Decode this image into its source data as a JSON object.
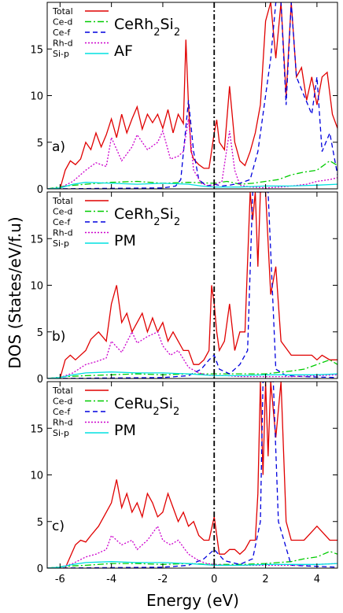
{
  "xlabel": "Energy (eV)",
  "ylabel": "DOS (States/eV/f.u)",
  "chart_data": [
    {
      "type": "line",
      "panel_label": "a)",
      "compound": {
        "base": "CeRh",
        "sub": "2",
        "tail": "Si",
        "sub2": "2"
      },
      "magnetic_state": "AF",
      "xlim": [
        -6.5,
        4.8
      ],
      "ylim": [
        0,
        20
      ],
      "xticks": [
        -6,
        -4,
        -2,
        0,
        2,
        4
      ],
      "yticks": [
        0,
        5,
        10,
        15
      ],
      "fermi_level": 0,
      "legend": [
        "Total",
        "Ce-d",
        "Ce-f",
        "Rh-d",
        "Si-p"
      ],
      "series": [
        {
          "name": "Total",
          "color": "#e00000",
          "dash": "",
          "x": [
            -6.5,
            -6.0,
            -5.8,
            -5.6,
            -5.4,
            -5.2,
            -5.0,
            -4.8,
            -4.6,
            -4.4,
            -4.2,
            -4.0,
            -3.8,
            -3.6,
            -3.4,
            -3.2,
            -3.0,
            -2.8,
            -2.6,
            -2.4,
            -2.2,
            -2.0,
            -1.8,
            -1.6,
            -1.4,
            -1.2,
            -1.1,
            -1.0,
            -0.9,
            -0.8,
            -0.6,
            -0.4,
            -0.2,
            0.0,
            0.1,
            0.2,
            0.4,
            0.6,
            0.8,
            1.0,
            1.2,
            1.4,
            1.6,
            1.8,
            2.0,
            2.2,
            2.4,
            2.6,
            2.8,
            3.0,
            3.2,
            3.4,
            3.6,
            3.8,
            4.0,
            4.2,
            4.4,
            4.6,
            4.8
          ],
          "y": [
            0,
            0,
            2,
            3,
            2.6,
            3.2,
            5,
            4.2,
            6,
            4.5,
            5.8,
            7.5,
            5.5,
            8,
            6,
            7.5,
            8.8,
            6.4,
            8,
            7.1,
            8,
            6.5,
            8.5,
            6,
            8,
            7,
            16,
            9,
            4,
            3.2,
            2.6,
            2.2,
            2.2,
            6,
            7.4,
            5,
            4.2,
            11,
            5,
            3,
            2.5,
            4,
            6,
            9,
            18,
            20,
            14,
            20,
            10,
            20,
            12,
            13,
            9.5,
            12,
            9,
            12,
            12.5,
            8,
            6.5
          ]
        },
        {
          "name": "Ce-d",
          "color": "#00cc00",
          "dash": "8 3 2 3",
          "x": [
            -6.5,
            -5.8,
            -5.0,
            -4.0,
            -3.0,
            -2.0,
            -1.0,
            0.0,
            0.5,
            1.0,
            1.5,
            2.0,
            2.5,
            3.0,
            3.5,
            4.0,
            4.5,
            4.8
          ],
          "y": [
            0,
            0.3,
            0.5,
            0.7,
            0.8,
            0.6,
            0.7,
            0.6,
            0.8,
            0.5,
            0.6,
            0.8,
            1.0,
            1.5,
            1.8,
            2.0,
            3.0,
            2.5
          ]
        },
        {
          "name": "Ce-f",
          "color": "#0000dd",
          "dash": "6 4",
          "x": [
            -6.5,
            -2.0,
            -1.5,
            -1.3,
            -1.0,
            -0.8,
            -0.6,
            -0.3,
            0.0,
            0.3,
            0.6,
            1.0,
            1.4,
            1.7,
            2.0,
            2.2,
            2.4,
            2.6,
            2.8,
            3.0,
            3.2,
            3.5,
            3.8,
            4.0,
            4.2,
            4.5,
            4.8
          ],
          "y": [
            0,
            0.1,
            0.3,
            1,
            9.5,
            4,
            1,
            0.3,
            0.5,
            0.3,
            0.4,
            0.6,
            1.0,
            4,
            10,
            14,
            20,
            20,
            9,
            20,
            12,
            10,
            8,
            12,
            4,
            6,
            1.5
          ]
        },
        {
          "name": "Rh-d",
          "color": "#cc00cc",
          "dash": "2 2",
          "x": [
            -6.5,
            -6.0,
            -5.5,
            -5.0,
            -4.6,
            -4.2,
            -4.0,
            -3.6,
            -3.2,
            -3.0,
            -2.6,
            -2.2,
            -2.0,
            -1.7,
            -1.4,
            -1.2,
            -1.0,
            -0.8,
            -0.5,
            -0.2,
            0.0,
            0.3,
            0.6,
            0.8,
            1.0,
            1.4,
            2.0,
            2.6,
            3.0,
            3.6,
            4.0,
            4.5,
            4.8
          ],
          "y": [
            0,
            0.1,
            0.8,
            2,
            2.8,
            2.4,
            5.5,
            3.0,
            4.5,
            5.8,
            4.2,
            5.0,
            6.2,
            3.2,
            3.5,
            4.0,
            7.5,
            2.0,
            0.6,
            0.3,
            0.4,
            0.8,
            6.2,
            2.0,
            0.4,
            0.2,
            0.1,
            0.2,
            0.3,
            0.5,
            0.8,
            1.0,
            1.2
          ]
        },
        {
          "name": "Si-p",
          "color": "#00e0e0",
          "dash": "",
          "x": [
            -6.5,
            -6.0,
            -5.5,
            -5.0,
            -4.0,
            -3.0,
            -2.0,
            -1.0,
            -0.5,
            0.0,
            1.0,
            2.0,
            3.0,
            4.0,
            4.8
          ],
          "y": [
            0,
            0.1,
            0.5,
            0.7,
            0.6,
            0.5,
            0.6,
            0.5,
            0.3,
            0.2,
            0.2,
            0.3,
            0.3,
            0.4,
            0.5
          ]
        }
      ]
    },
    {
      "type": "line",
      "panel_label": "b)",
      "compound": {
        "base": "CeRh",
        "sub": "2",
        "tail": "Si",
        "sub2": "2"
      },
      "magnetic_state": "PM",
      "xlim": [
        -6.5,
        4.8
      ],
      "ylim": [
        0,
        20
      ],
      "xticks": [
        -6,
        -4,
        -2,
        0,
        2,
        4
      ],
      "yticks": [
        0,
        5,
        10,
        15
      ],
      "fermi_level": 0,
      "legend": [
        "Total",
        "Ce-d",
        "Ce-f",
        "Rh-d",
        "Si-p"
      ],
      "series": [
        {
          "name": "Total",
          "color": "#e00000",
          "dash": "",
          "x": [
            -6.5,
            -6.0,
            -5.8,
            -5.6,
            -5.4,
            -5.0,
            -4.8,
            -4.5,
            -4.2,
            -4.0,
            -3.8,
            -3.6,
            -3.4,
            -3.2,
            -3.0,
            -2.8,
            -2.6,
            -2.4,
            -2.2,
            -2.0,
            -1.8,
            -1.6,
            -1.4,
            -1.2,
            -1.0,
            -0.8,
            -0.6,
            -0.4,
            -0.2,
            -0.1,
            0.0,
            0.1,
            0.2,
            0.4,
            0.6,
            0.8,
            1.0,
            1.2,
            1.4,
            1.5,
            1.6,
            1.7,
            1.8,
            1.9,
            2.0,
            2.2,
            2.4,
            2.6,
            3.0,
            3.4,
            3.8,
            4.0,
            4.2,
            4.5,
            4.8
          ],
          "y": [
            0,
            0,
            2,
            2.5,
            2.0,
            3.0,
            4.2,
            5.0,
            4.0,
            8.0,
            10.0,
            6.0,
            7.0,
            5.0,
            6.0,
            7.0,
            5.0,
            6.5,
            5.0,
            6.0,
            4.0,
            5.0,
            4.0,
            3.0,
            3.0,
            1.5,
            1.5,
            2.0,
            3.0,
            10.0,
            8.0,
            5.0,
            3.0,
            4.0,
            8.0,
            3.0,
            5.0,
            5.0,
            20.0,
            17.0,
            20.0,
            12.0,
            20.0,
            20.0,
            20.0,
            9.0,
            12.0,
            4.0,
            2.5,
            2.5,
            2.5,
            2.0,
            2.5,
            2.0,
            2.0
          ]
        },
        {
          "name": "Ce-d",
          "color": "#00cc00",
          "dash": "8 3 2 3",
          "x": [
            -6.5,
            -5.8,
            -5.0,
            -4.0,
            -3.0,
            -2.0,
            -1.0,
            0.0,
            1.0,
            2.0,
            3.0,
            3.5,
            4.0,
            4.5,
            4.8
          ],
          "y": [
            0,
            0.2,
            0.3,
            0.4,
            0.5,
            0.4,
            0.5,
            0.5,
            0.5,
            0.5,
            0.8,
            1.0,
            1.5,
            2.0,
            1.5
          ]
        },
        {
          "name": "Ce-f",
          "color": "#0000dd",
          "dash": "6 4",
          "x": [
            -6.5,
            -2.0,
            -1.0,
            -0.5,
            -0.2,
            0.0,
            0.2,
            0.6,
            1.0,
            1.3,
            1.5,
            1.7,
            1.9,
            2.1,
            2.4,
            2.8,
            3.5,
            4.8
          ],
          "y": [
            0,
            0.1,
            0.3,
            1.0,
            2.0,
            2.5,
            1.0,
            0.5,
            1.5,
            3.0,
            20.0,
            20.0,
            20.0,
            20.0,
            1.0,
            0.3,
            0.2,
            0.1
          ]
        },
        {
          "name": "Rh-d",
          "color": "#cc00cc",
          "dash": "2 2",
          "x": [
            -6.5,
            -6.0,
            -5.5,
            -5.0,
            -4.6,
            -4.2,
            -4.0,
            -3.6,
            -3.2,
            -3.0,
            -2.6,
            -2.2,
            -2.0,
            -1.7,
            -1.4,
            -1.0,
            -0.6,
            -0.3,
            0.0,
            0.5,
            1.0,
            2.0,
            3.0,
            4.0,
            4.8
          ],
          "y": [
            0,
            0.1,
            0.6,
            1.5,
            1.8,
            2.2,
            4.0,
            2.8,
            5.0,
            3.8,
            4.5,
            5.0,
            3.5,
            2.5,
            3.0,
            1.2,
            0.6,
            0.4,
            0.3,
            0.3,
            0.2,
            0.2,
            0.2,
            0.3,
            0.4
          ]
        },
        {
          "name": "Si-p",
          "color": "#00e0e0",
          "dash": "",
          "x": [
            -6.5,
            -6.0,
            -5.5,
            -5.0,
            -4.0,
            -3.0,
            -2.0,
            -1.0,
            0.0,
            1.0,
            2.0,
            3.0,
            4.0,
            4.8
          ],
          "y": [
            0,
            0.1,
            0.4,
            0.6,
            0.7,
            0.6,
            0.6,
            0.5,
            0.3,
            0.3,
            0.4,
            0.4,
            0.4,
            0.5
          ]
        }
      ]
    },
    {
      "type": "line",
      "panel_label": "c)",
      "compound": {
        "base": "CeRu",
        "sub": "2",
        "tail": "Si",
        "sub2": "2"
      },
      "magnetic_state": "PM",
      "xlim": [
        -6.5,
        4.8
      ],
      "ylim": [
        0,
        20
      ],
      "xticks": [
        -6,
        -4,
        -2,
        0,
        2,
        4
      ],
      "yticks": [
        0,
        5,
        10,
        15
      ],
      "fermi_level": 0,
      "legend": [
        "Total",
        "Ce-d",
        "Ce-f",
        "Rh-d",
        "Si-p"
      ],
      "series": [
        {
          "name": "Total",
          "color": "#e00000",
          "dash": "",
          "x": [
            -6.5,
            -5.8,
            -5.4,
            -5.2,
            -5.0,
            -4.8,
            -4.5,
            -4.2,
            -4.0,
            -3.8,
            -3.6,
            -3.4,
            -3.2,
            -3.0,
            -2.8,
            -2.6,
            -2.4,
            -2.2,
            -2.0,
            -1.8,
            -1.6,
            -1.4,
            -1.2,
            -1.0,
            -0.8,
            -0.6,
            -0.4,
            -0.2,
            0.0,
            0.2,
            0.4,
            0.6,
            0.8,
            1.0,
            1.2,
            1.4,
            1.6,
            1.7,
            1.8,
            1.9,
            2.0,
            2.1,
            2.2,
            2.4,
            2.6,
            2.8,
            3.0,
            3.5,
            4.0,
            4.5,
            4.8
          ],
          "y": [
            0,
            0,
            2.5,
            3.0,
            2.8,
            3.5,
            4.5,
            6.0,
            7.0,
            9.5,
            6.5,
            8.0,
            6.0,
            7.0,
            5.5,
            8.0,
            7.0,
            5.5,
            6.0,
            8.0,
            6.5,
            5.0,
            6.0,
            4.5,
            5.0,
            3.5,
            3.0,
            3.0,
            5.5,
            1.5,
            1.5,
            2.0,
            2.0,
            1.5,
            2.0,
            3.0,
            3.0,
            8.0,
            20.0,
            10.0,
            20.0,
            12.0,
            20.0,
            14.0,
            20.0,
            5.0,
            3.0,
            3.0,
            4.5,
            3.0,
            3.0
          ]
        },
        {
          "name": "Ce-d",
          "color": "#00cc00",
          "dash": "8 3 2 3",
          "x": [
            -6.5,
            -5.8,
            -5.0,
            -4.0,
            -3.0,
            -2.0,
            -1.0,
            0.0,
            1.0,
            2.0,
            3.0,
            3.5,
            4.0,
            4.5,
            4.8
          ],
          "y": [
            0,
            0.2,
            0.3,
            0.5,
            0.5,
            0.4,
            0.5,
            0.4,
            0.4,
            0.5,
            0.7,
            1.0,
            1.2,
            1.8,
            1.5
          ]
        },
        {
          "name": "Ce-f",
          "color": "#0000dd",
          "dash": "6 4",
          "x": [
            -6.5,
            -2.0,
            -1.0,
            -0.4,
            0.0,
            0.4,
            1.0,
            1.5,
            1.8,
            1.9,
            2.0,
            2.1,
            2.2,
            2.3,
            2.5,
            3.0,
            4.8
          ],
          "y": [
            0,
            0.1,
            0.3,
            1.0,
            2.0,
            0.8,
            0.4,
            1.0,
            5.0,
            20.0,
            20.0,
            20.0,
            20.0,
            20.0,
            5.0,
            0.3,
            0.1
          ]
        },
        {
          "name": "Rh-d",
          "color": "#cc00cc",
          "dash": "2 2",
          "x": [
            -6.5,
            -6.0,
            -5.5,
            -5.0,
            -4.6,
            -4.2,
            -4.0,
            -3.6,
            -3.2,
            -3.0,
            -2.6,
            -2.2,
            -2.0,
            -1.7,
            -1.4,
            -1.0,
            -0.6,
            -0.3,
            0.0,
            0.5,
            1.0,
            2.0,
            3.0,
            4.0,
            4.8
          ],
          "y": [
            0,
            0.1,
            0.5,
            1.2,
            1.5,
            2.0,
            3.5,
            2.5,
            3.0,
            2.0,
            3.0,
            4.5,
            3.0,
            2.5,
            3.0,
            1.5,
            0.8,
            0.5,
            0.4,
            0.3,
            0.3,
            0.3,
            0.3,
            0.4,
            0.5
          ]
        },
        {
          "name": "Si-p",
          "color": "#00e0e0",
          "dash": "",
          "x": [
            -6.5,
            -6.0,
            -5.5,
            -5.0,
            -4.0,
            -3.0,
            -2.0,
            -1.0,
            0.0,
            1.0,
            2.0,
            3.0,
            4.0,
            4.8
          ],
          "y": [
            0,
            0.1,
            0.4,
            0.6,
            0.7,
            0.6,
            0.6,
            0.5,
            0.3,
            0.3,
            0.4,
            0.4,
            0.4,
            0.5
          ]
        }
      ]
    }
  ]
}
